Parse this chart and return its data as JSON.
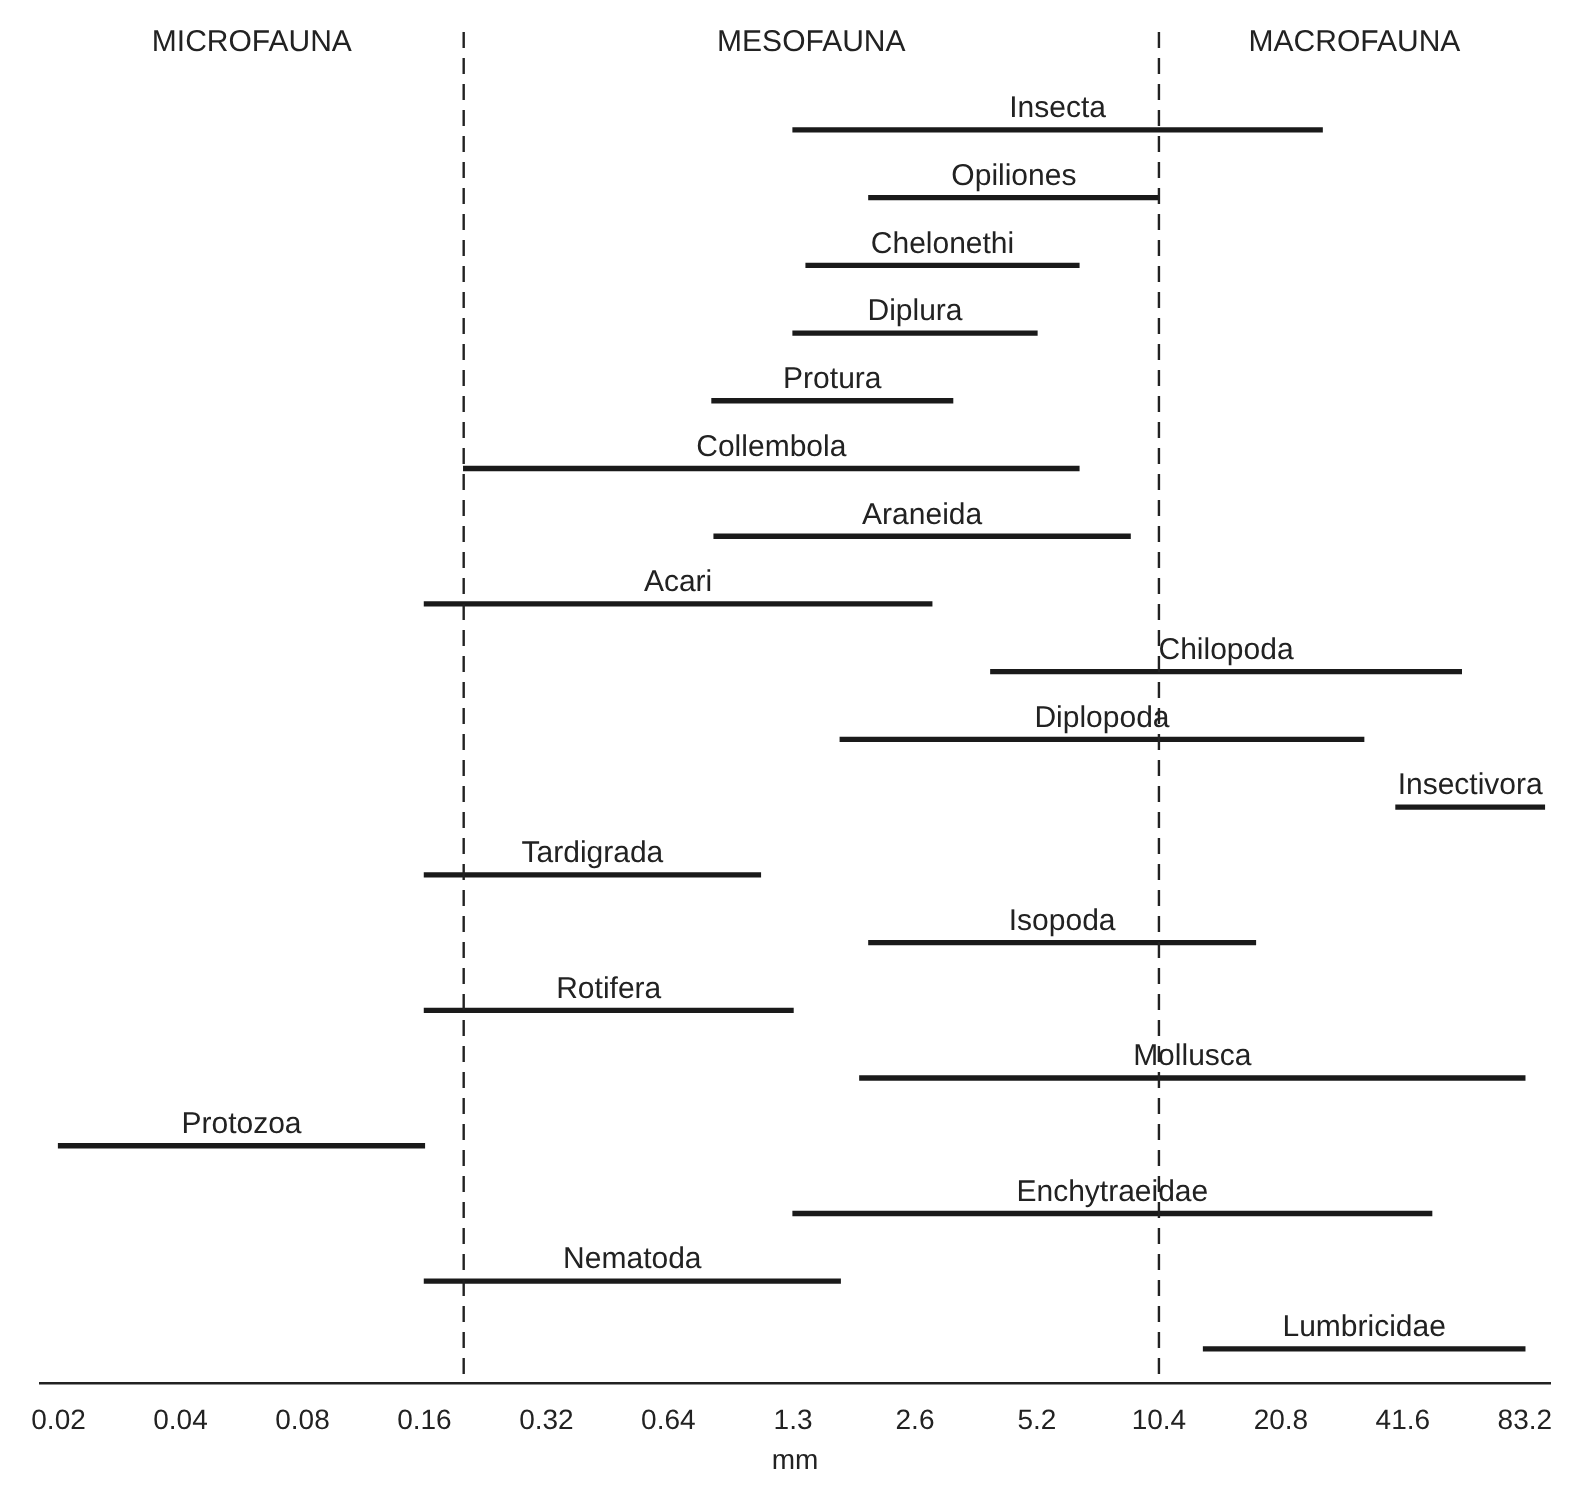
{
  "chart_data": {
    "type": "bar",
    "orientation": "horizontal",
    "xlabel": "mm",
    "categories": [
      "Insecta",
      "Opiliones",
      "Chelonethi",
      "Diplura",
      "Protura",
      "Collembola",
      "Araneida",
      "Acari",
      "Chilopoda",
      "Diplopoda",
      "Insectivora",
      "Tardigrada",
      "Isopoda",
      "Rotifera",
      "Mollusca",
      "Protozoa",
      "Enchytraeidae",
      "Nematoda",
      "Lumbricidae"
    ],
    "base": [
      1.3,
      2.0,
      1.4,
      1.3,
      0.82,
      0.2,
      0.83,
      0.16,
      4.0,
      1.7,
      40,
      0.16,
      2.0,
      0.16,
      1.9,
      0.02,
      1.3,
      0.16,
      13.4
    ],
    "values": [
      25,
      8.4,
      5.2,
      3.9,
      2.4,
      6.4,
      8.0,
      2.7,
      54,
      31.6,
      53,
      0.92,
      16,
      1.14,
      81.3,
      0.14,
      47.7,
      1.54,
      69.8
    ],
    "color": "#1a1a1a",
    "log": "x",
    "xlim": [
      0.018,
      96
    ],
    "xticks": [
      0.02,
      0.04,
      0.08,
      0.16,
      0.32,
      0.64,
      1.3,
      2.6,
      5.2,
      10.4,
      20.8,
      41.6,
      83.2
    ],
    "grid": false,
    "legend": false,
    "tick_labels": "x",
    "ref_lines": [
      {
        "axis": "x",
        "value": 0.2,
        "line_style": "dashed"
      },
      {
        "axis": "x",
        "value": 10.4,
        "line_style": "dashed"
      }
    ],
    "annotations": [
      "MICROFAUNA",
      "MESOFAUNA",
      "MACROFAUNA"
    ]
  }
}
